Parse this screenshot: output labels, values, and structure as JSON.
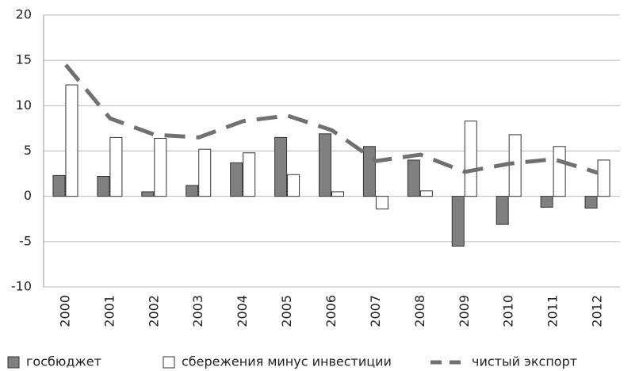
{
  "chart_data": {
    "type": "bar",
    "categories": [
      "2000",
      "2001",
      "2002",
      "2003",
      "2004",
      "2005",
      "2006",
      "2007",
      "2008",
      "2009",
      "2010",
      "2011",
      "2012"
    ],
    "series": [
      {
        "name": "госбюджет",
        "color": "#808080",
        "values": [
          2.3,
          2.2,
          0.5,
          1.2,
          3.7,
          6.5,
          6.9,
          5.5,
          4.0,
          -5.5,
          -3.1,
          -1.2,
          -1.3
        ]
      },
      {
        "name": "сбережения минус инвестиции",
        "color": "#ffffff",
        "values": [
          12.3,
          6.5,
          6.4,
          5.2,
          4.8,
          2.4,
          0.5,
          -1.4,
          0.6,
          8.3,
          6.8,
          5.5,
          4.0
        ]
      },
      {
        "name": "чистый экспорт",
        "color": "#707070",
        "type": "line",
        "dashed": true,
        "values": [
          14.5,
          8.6,
          6.8,
          6.5,
          8.3,
          8.9,
          7.3,
          3.9,
          4.6,
          2.7,
          3.6,
          4.1,
          2.6
        ]
      }
    ],
    "ylim": [
      -10,
      20
    ],
    "yticks": [
      -10,
      -5,
      0,
      5,
      10,
      15,
      20
    ],
    "grid": true,
    "legend": "bottom"
  }
}
